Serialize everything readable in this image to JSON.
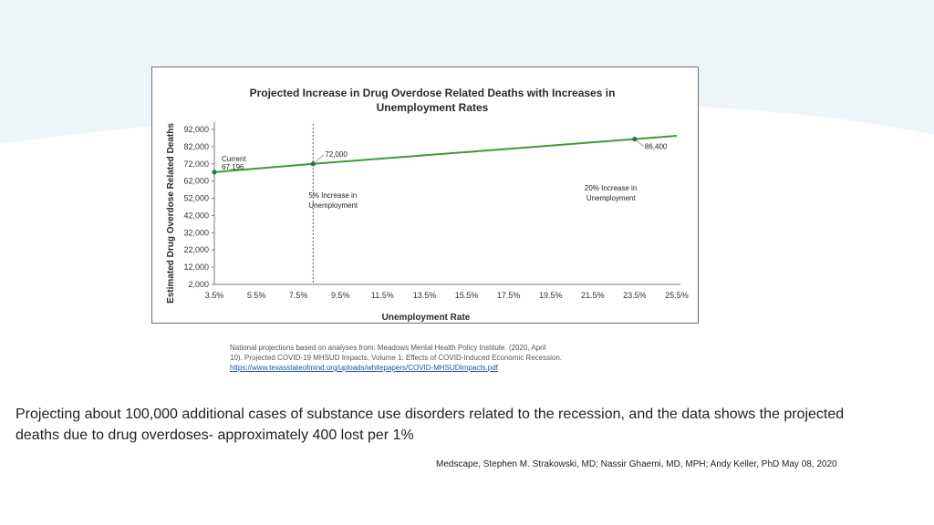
{
  "slide": {
    "source_lines": [
      "National projections based on analyses from: Meadows Mental Health Policy Institute. (2020, April",
      "10). Projected COVID-19 MHSUD Impacts, Volume 1: Effects of COVID-Induced Economic Recession."
    ],
    "source_url": "https://www.texasstateofmind.org/uploads/whitepapers/COVID-MHSUDImpacts.pdf",
    "caption": "Projecting about 100,000 additional cases of substance use disorders related to the recession, and the data shows the projected deaths due to drug overdoses- approximately 400 lost per 1%",
    "citation": "Medscape, Stephen M. Strakowski, MD; Nassir Ghaemi, MD, MPH; Andy Keller, PhD May 08, 2020",
    "colors": {
      "line": "#3a9a3a",
      "point": "#2f6f4f",
      "background_wave": "#eef5f8"
    }
  },
  "chart_data": {
    "type": "line",
    "title": "Projected Increase in Drug Overdose Related Deaths with Increases in Unemployment Rates",
    "title_lines": [
      "Projected Increase in Drug Overdose Related Deaths with Increases in",
      "Unemployment Rates"
    ],
    "xlabel": "Unemployment Rate",
    "ylabel": "Estimated Drug Overdose Related Deaths",
    "x_ticks": [
      "3.5%",
      "5.5%",
      "7.5%",
      "9.5%",
      "11.5%",
      "13.5%",
      "15.5%",
      "17.5%",
      "19.5%",
      "21.5%",
      "23.5%",
      "25.5%"
    ],
    "y_ticks": [
      "2,000",
      "12,000",
      "22,000",
      "32,000",
      "42,000",
      "52,000",
      "62,000",
      "72,000",
      "82,000",
      "92,000"
    ],
    "xlim": [
      3.5,
      25.5
    ],
    "ylim": [
      2000,
      92000
    ],
    "x": [
      3.5,
      8.2,
      23.5,
      25.5
    ],
    "y": [
      67196,
      72000,
      86400,
      88300
    ],
    "markers": [
      {
        "x": 3.5,
        "y": 67196,
        "label": "Current",
        "value_label": "67,196"
      },
      {
        "x": 8.2,
        "y": 72000,
        "value_label": "72,000"
      },
      {
        "x": 23.5,
        "y": 86400,
        "value_label": "86,400"
      }
    ],
    "reference_line": {
      "x": 8.2,
      "style": "dotted"
    },
    "annotations": [
      {
        "lines": [
          "5% Increase in",
          "Unemployment"
        ],
        "x": 8.2
      },
      {
        "lines": [
          "20% Increase in",
          "Unemployment"
        ],
        "x": 23.5
      }
    ],
    "grid": false,
    "legend": "none"
  }
}
